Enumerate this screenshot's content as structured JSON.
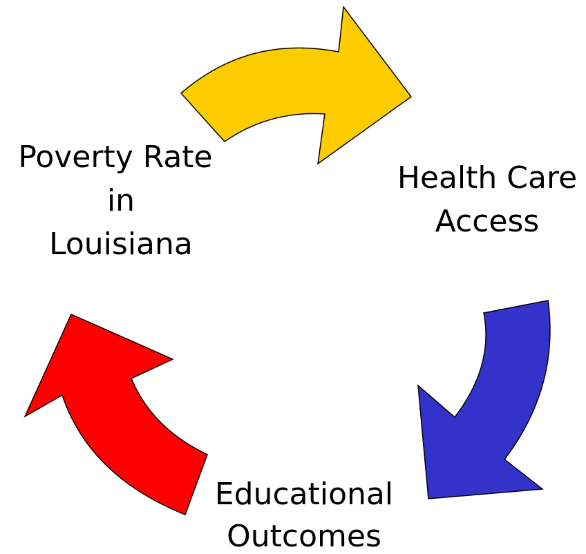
{
  "nodes": [
    {
      "lines": [
        "Poverty Rate",
        "in",
        "Louisiana"
      ]
    },
    {
      "lines": [
        "Health Care",
        "Access"
      ]
    },
    {
      "lines": [
        "Educational",
        "Outcomes"
      ]
    }
  ]
}
